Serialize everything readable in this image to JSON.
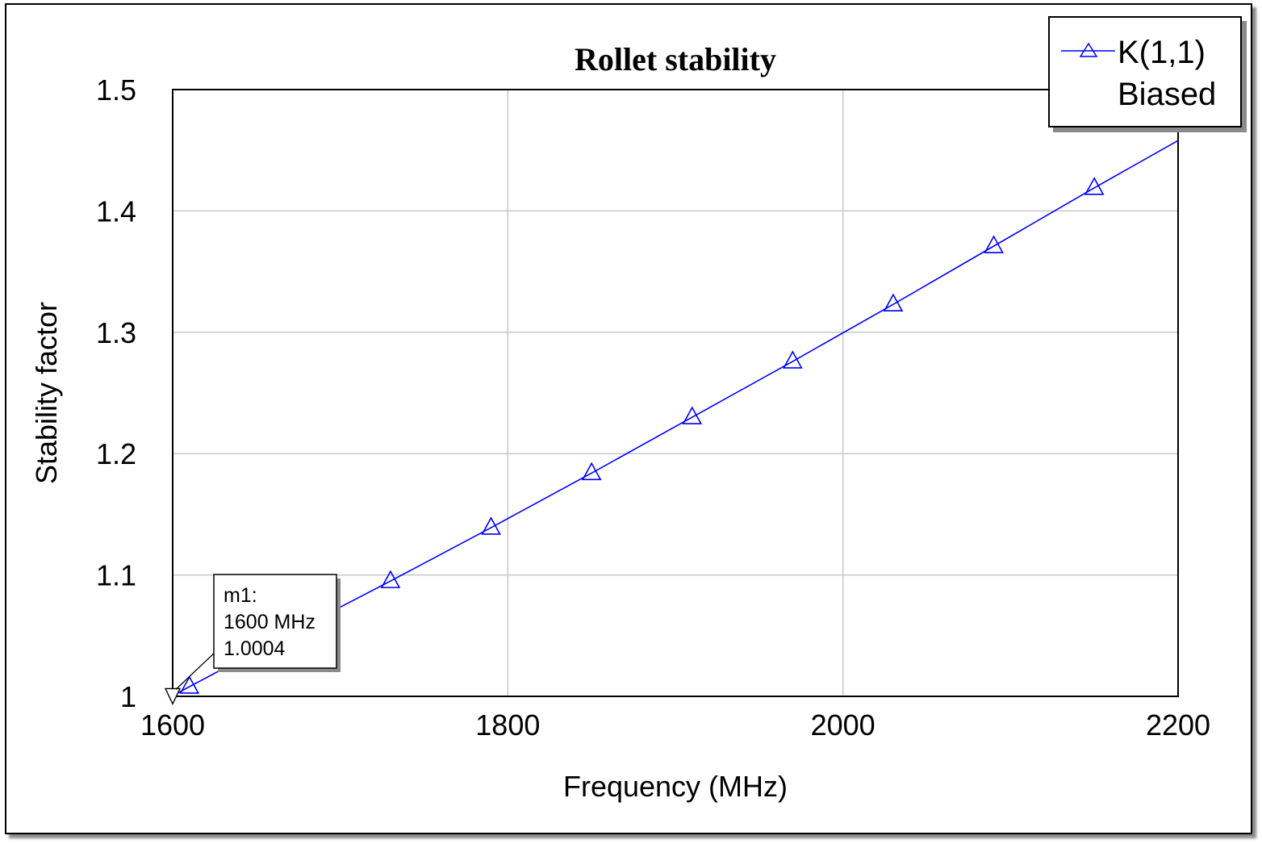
{
  "chart_data": {
    "type": "line",
    "title": "Rollet stability",
    "xlabel": "Frequency (MHz)",
    "ylabel": "Stability factor",
    "xlim": [
      1600,
      2200
    ],
    "ylim": [
      1,
      1.5
    ],
    "x_ticks": [
      1600,
      1800,
      2000,
      2200
    ],
    "y_ticks": [
      1,
      1.1,
      1.2,
      1.3,
      1.4,
      1.5
    ],
    "x_tick_labels": [
      "1600",
      "1800",
      "2000",
      "2200"
    ],
    "y_tick_labels": [
      "1",
      "1.1",
      "1.2",
      "1.3",
      "1.4",
      "1.5"
    ],
    "grid": true,
    "legend_position": "top-right",
    "series": [
      {
        "name": "K(1,1)",
        "name_line2": "Biased",
        "color": "#0000ff",
        "marker": "triangle",
        "x": [
          1600,
          1610,
          1670,
          1730,
          1790,
          1850,
          1910,
          1970,
          2030,
          2090,
          2150,
          2200
        ],
        "y": [
          1.0004,
          1.008,
          1.052,
          1.095,
          1.139,
          1.184,
          1.23,
          1.276,
          1.323,
          1.371,
          1.419,
          1.458
        ],
        "marker_x": [
          1610,
          1730,
          1790,
          1850,
          1910,
          1970,
          2030,
          2090,
          2150
        ]
      }
    ],
    "annotations": [
      {
        "id": "m1",
        "lines": [
          "m1:",
          "1600 MHz",
          "1.0004"
        ],
        "x": 1600,
        "y": 1.0004
      }
    ]
  }
}
